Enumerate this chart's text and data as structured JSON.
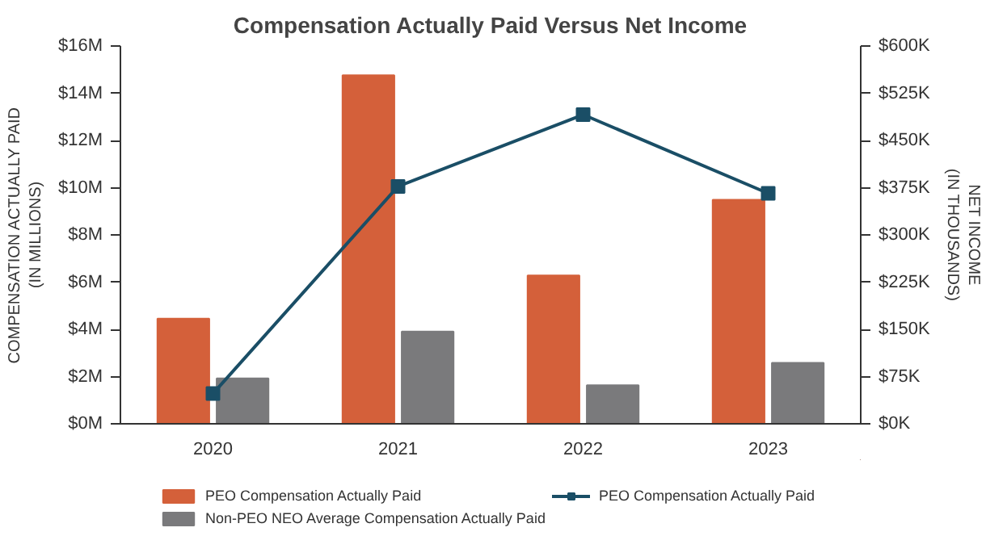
{
  "chart_data": {
    "type": "bar",
    "title": "Compensation Actually Paid Versus Net Income",
    "ylabel": "COMPENSATION ACTUALLY PAID\n(IN MILLIONS)",
    "y2label": "NET INCOME\n(IN THOUSANDS)",
    "categories": [
      "2020",
      "2021",
      "2022",
      "2023"
    ],
    "series": [
      {
        "name": "PEO Compensation Actually Paid",
        "color": "#d4603a",
        "values": [
          4.45,
          14.76,
          6.28,
          9.49
        ]
      },
      {
        "name": "Non-PEO NEO Average Compensation Actually Paid",
        "color": "#7a7a7c",
        "values": [
          1.92,
          3.91,
          1.63,
          2.58
        ]
      },
      {
        "name": "PEO Compensation Actually Paid",
        "type": "line",
        "axis": "y2",
        "color": "#1a4e66",
        "marker": "square",
        "values": [
          48,
          377,
          491,
          366
        ]
      }
    ],
    "ylim": [
      0,
      16
    ],
    "yticks": [
      {
        "value": 0,
        "label": "$0M"
      },
      {
        "value": 2,
        "label": "$2M"
      },
      {
        "value": 4,
        "label": "$4M"
      },
      {
        "value": 6,
        "label": "$6M"
      },
      {
        "value": 8,
        "label": "$8M"
      },
      {
        "value": 10,
        "label": "$10M"
      },
      {
        "value": 12,
        "label": "$12M"
      },
      {
        "value": 14,
        "label": "$14M"
      },
      {
        "value": 16,
        "label": "$16M"
      }
    ],
    "y2lim": [
      0,
      600
    ],
    "y2ticks": [
      {
        "value": 0,
        "label": "$0K"
      },
      {
        "value": 75,
        "label": "$75K"
      },
      {
        "value": 150,
        "label": "$150K"
      },
      {
        "value": 225,
        "label": "$225K"
      },
      {
        "value": 300,
        "label": "$300K"
      },
      {
        "value": 375,
        "label": "$375K"
      },
      {
        "value": 450,
        "label": "$450K"
      },
      {
        "value": 525,
        "label": "$525K"
      },
      {
        "value": 600,
        "label": "$600K"
      }
    ],
    "grid": false,
    "legend": "bottom"
  }
}
